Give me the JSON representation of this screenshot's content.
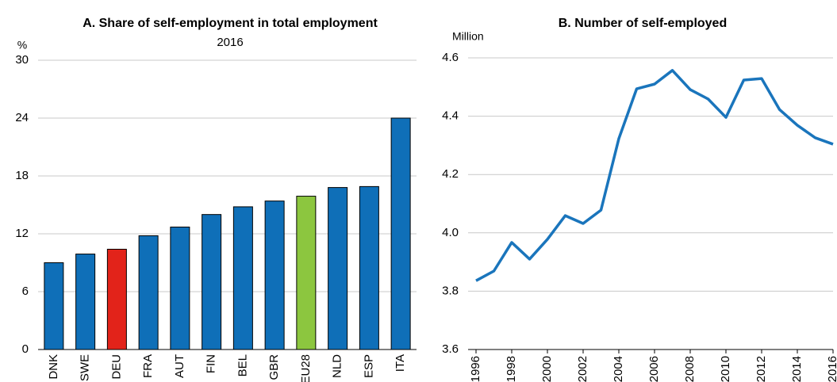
{
  "chart_data": [
    {
      "type": "bar",
      "title": "A. Share of self-employment in total employment",
      "subtitle": "2016",
      "y_label": "%",
      "categories": [
        "DNK",
        "SWE",
        "DEU",
        "FRA",
        "AUT",
        "FIN",
        "BEL",
        "GBR",
        "EU28",
        "NLD",
        "ESP",
        "ITA"
      ],
      "values": [
        9.0,
        9.9,
        10.4,
        11.8,
        12.7,
        14.0,
        14.8,
        15.4,
        15.9,
        16.8,
        16.9,
        24.0
      ],
      "colors": [
        "#0f6fb8",
        "#0f6fb8",
        "#e2231a",
        "#0f6fb8",
        "#0f6fb8",
        "#0f6fb8",
        "#0f6fb8",
        "#0f6fb8",
        "#8cc63f",
        "#0f6fb8",
        "#0f6fb8",
        "#0f6fb8"
      ],
      "ylim": [
        0,
        30
      ],
      "yticks": [
        0,
        6,
        12,
        18,
        24,
        30
      ],
      "grid": true
    },
    {
      "type": "line",
      "title": "B. Number of self-employed",
      "y_label": "Million",
      "x": [
        1996,
        1997,
        1998,
        1999,
        2000,
        2001,
        2002,
        2003,
        2004,
        2005,
        2006,
        2007,
        2008,
        2009,
        2010,
        2011,
        2012,
        2013,
        2014,
        2015,
        2016
      ],
      "values": [
        3.836,
        3.869,
        3.967,
        3.91,
        3.978,
        4.059,
        4.032,
        4.078,
        4.323,
        4.494,
        4.51,
        4.557,
        4.491,
        4.459,
        4.396,
        4.524,
        4.529,
        4.423,
        4.369,
        4.326,
        4.304
      ],
      "color": "#1a75bc",
      "xlim": [
        1996,
        2016
      ],
      "xticks": [
        1996,
        1998,
        2000,
        2002,
        2004,
        2006,
        2008,
        2010,
        2012,
        2014,
        2016
      ],
      "ylim": [
        3.6,
        4.6
      ],
      "yticks": [
        {
          "value": 3.6,
          "label": "3.6"
        },
        {
          "value": 3.8,
          "label": "3.8"
        },
        {
          "value": 4.0,
          "label": "4.0"
        },
        {
          "value": 4.2,
          "label": "4.2"
        },
        {
          "value": 4.4,
          "label": "4.4"
        },
        {
          "value": 4.6,
          "label": "4.6"
        }
      ],
      "grid": true
    }
  ]
}
